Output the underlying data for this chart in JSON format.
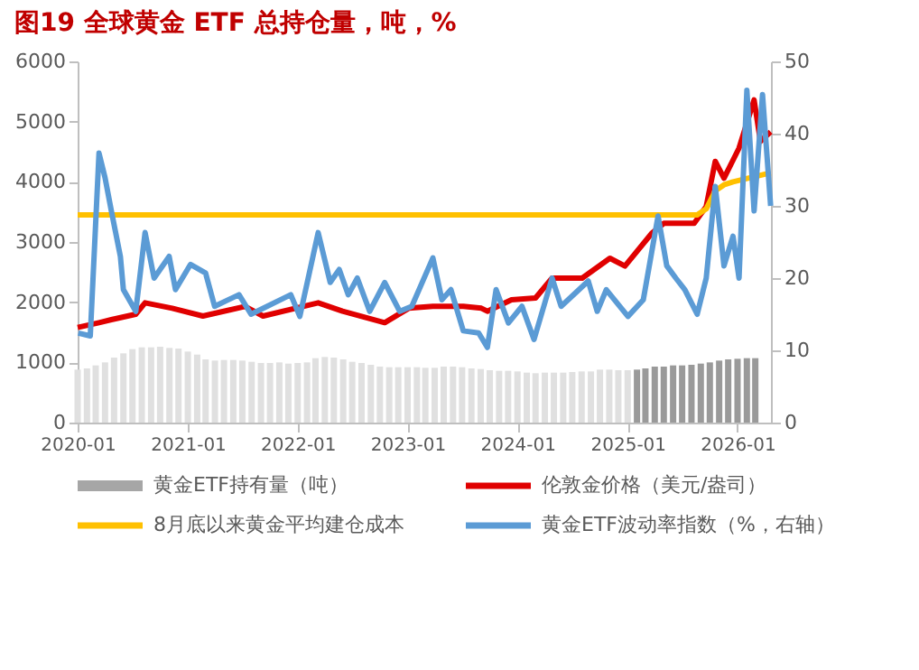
{
  "chart_data": {
    "type": "line",
    "title": "图19  全球黄金 ETF 总持仓量，吨，%",
    "xlim": [
      "2020-01-01",
      "2026-04-22"
    ],
    "xticks": [
      "2020-01",
      "2021-01",
      "2022-01",
      "2023-01",
      "2024-01",
      "2025-01",
      "2026-01"
    ],
    "ylim": [
      0,
      6000
    ],
    "yticks": [
      0,
      1000,
      2000,
      3000,
      4000,
      5000,
      6000
    ],
    "y2lim": [
      0,
      50
    ],
    "y2ticks": [
      0,
      10,
      20,
      30,
      40,
      50
    ],
    "grid": false,
    "legend": "bottom",
    "series": [
      {
        "type": "bar",
        "name": "黄金ETF持有量（吨）",
        "color": "#a6a6a6",
        "x": [
          "2020-01",
          "2020-02",
          "2020-03",
          "2020-04",
          "2020-05",
          "2020-06",
          "2020-07",
          "2020-08",
          "2020-09",
          "2020-10",
          "2020-11",
          "2020-12",
          "2021-01",
          "2021-02",
          "2021-03",
          "2021-04",
          "2021-05",
          "2021-06",
          "2021-07",
          "2021-08",
          "2021-09",
          "2021-10",
          "2021-11",
          "2021-12",
          "2022-01",
          "2022-02",
          "2022-03",
          "2022-04",
          "2022-05",
          "2022-06",
          "2022-07",
          "2022-08",
          "2022-09",
          "2022-10",
          "2022-11",
          "2022-12",
          "2023-01",
          "2023-02",
          "2023-03",
          "2023-04",
          "2023-05",
          "2023-06",
          "2023-07",
          "2023-08",
          "2023-09",
          "2023-10",
          "2023-11",
          "2023-12",
          "2024-01",
          "2024-02",
          "2024-03",
          "2024-04",
          "2024-05",
          "2024-06",
          "2024-07",
          "2024-08",
          "2024-09",
          "2024-10",
          "2024-11",
          "2024-12",
          "2025-01",
          "2025-02",
          "2025-03",
          "2025-04",
          "2025-05",
          "2025-06",
          "2025-07",
          "2025-08",
          "2025-09",
          "2025-10",
          "2025-11",
          "2025-12",
          "2026-01",
          "2026-02",
          "2026-03"
        ],
        "values": [
          880,
          900,
          950,
          1000,
          1080,
          1150,
          1220,
          1250,
          1250,
          1260,
          1240,
          1230,
          1180,
          1130,
          1050,
          1030,
          1040,
          1040,
          1030,
          1010,
          990,
          990,
          1000,
          980,
          990,
          1000,
          1070,
          1090,
          1080,
          1050,
          1010,
          990,
          960,
          930,
          920,
          920,
          920,
          920,
          910,
          910,
          930,
          930,
          920,
          900,
          890,
          870,
          860,
          860,
          850,
          830,
          820,
          830,
          830,
          830,
          840,
          850,
          850,
          880,
          880,
          870,
          870,
          880,
          900,
          930,
          930,
          950,
          950,
          960,
          980,
          1000,
          1030,
          1050,
          1060,
          1070,
          1070
        ],
        "colors": [
          "#e0e0e0",
          "#e0e0e0",
          "#e0e0e0",
          "#e0e0e0",
          "#e0e0e0",
          "#e0e0e0",
          "#e0e0e0",
          "#e0e0e0",
          "#e0e0e0",
          "#e0e0e0",
          "#e0e0e0",
          "#e0e0e0",
          "#e0e0e0",
          "#e0e0e0",
          "#e0e0e0",
          "#e0e0e0",
          "#e0e0e0",
          "#e0e0e0",
          "#e0e0e0",
          "#e0e0e0",
          "#e0e0e0",
          "#e0e0e0",
          "#e0e0e0",
          "#e0e0e0",
          "#e0e0e0",
          "#e0e0e0",
          "#e0e0e0",
          "#e0e0e0",
          "#e0e0e0",
          "#e0e0e0",
          "#e0e0e0",
          "#e0e0e0",
          "#e0e0e0",
          "#e0e0e0",
          "#e0e0e0",
          "#e0e0e0",
          "#e0e0e0",
          "#e0e0e0",
          "#e0e0e0",
          "#e0e0e0",
          "#e0e0e0",
          "#e0e0e0",
          "#e0e0e0",
          "#e0e0e0",
          "#e0e0e0",
          "#e0e0e0",
          "#e0e0e0",
          "#e0e0e0",
          "#e0e0e0",
          "#e0e0e0",
          "#e0e0e0",
          "#e0e0e0",
          "#e0e0e0",
          "#e0e0e0",
          "#e0e0e0",
          "#e0e0e0",
          "#e0e0e0",
          "#e0e0e0",
          "#e0e0e0",
          "#e0e0e0",
          "#e0e0e0",
          "#9a9a9a",
          "#9a9a9a",
          "#9a9a9a",
          "#9a9a9a",
          "#9a9a9a",
          "#9a9a9a",
          "#9a9a9a",
          "#9a9a9a",
          "#9a9a9a",
          "#9a9a9a",
          "#9a9a9a",
          "#9a9a9a",
          "#9a9a9a",
          "#9a9a9a"
        ]
      },
      {
        "name": "伦敦金价格（美元/盎司）",
        "color": "#e00000",
        "x": [
          "2020-01-01",
          "2020-03-12",
          "2020-04-22",
          "2020-07-12",
          "2020-08-12",
          "2020-11-10",
          "2021-02-20",
          "2021-07-10",
          "2021-09-08",
          "2022-03-10",
          "2022-05-30",
          "2022-10-17",
          "2023-01-05",
          "2023-03-26",
          "2023-07-05",
          "2023-09-03",
          "2023-09-23",
          "2023-12-12",
          "2024-03-01",
          "2024-04-25",
          "2024-08-03",
          "2024-11-03",
          "2024-12-23",
          "2025-03-23",
          "2025-05-01",
          "2025-08-10",
          "2025-09-19",
          "2025-10-19",
          "2025-11-17",
          "2026-01-06",
          "2026-02-25",
          "2026-03-18",
          "2026-04-21"
        ],
        "values": [
          1580,
          1660,
          1710,
          1800,
          1990,
          1900,
          1770,
          1930,
          1770,
          1990,
          1850,
          1660,
          1900,
          1930,
          1930,
          1900,
          1850,
          2040,
          2070,
          2400,
          2400,
          2730,
          2600,
          3150,
          3310,
          3310,
          3590,
          4340,
          4060,
          4560,
          5360,
          4670,
          4830
        ]
      },
      {
        "name": "8月底以来黄金平均建仓成本",
        "color": "#ffc000",
        "x": [
          "2020-01-01",
          "2025-08-20",
          "2025-09-19",
          "2025-10-19",
          "2025-11-17",
          "2025-12-17",
          "2026-04-21"
        ],
        "values": [
          3450,
          3450,
          3550,
          3850,
          3950,
          4000,
          4150
        ]
      },
      {
        "name": "黄金ETF波动率指数（%，右轴）",
        "color": "#5b9bd5",
        "axis": "y2",
        "x": [
          "2020-01-03",
          "2020-02-12",
          "2020-03-12",
          "2020-04-01",
          "2020-04-22",
          "2020-05-22",
          "2020-06-01",
          "2020-07-12",
          "2020-08-12",
          "2020-09-11",
          "2020-10-31",
          "2020-11-21",
          "2021-01-10",
          "2021-03-01",
          "2021-03-31",
          "2021-06-20",
          "2021-07-30",
          "2021-12-09",
          "2022-01-08",
          "2022-03-10",
          "2022-04-19",
          "2022-05-19",
          "2022-06-18",
          "2022-07-18",
          "2022-08-28",
          "2022-10-17",
          "2022-12-06",
          "2023-01-15",
          "2023-03-26",
          "2023-04-25",
          "2023-05-25",
          "2023-07-05",
          "2023-08-25",
          "2023-09-23",
          "2023-10-22",
          "2023-12-02",
          "2024-01-16",
          "2024-02-25",
          "2024-04-25",
          "2024-05-25",
          "2024-08-23",
          "2024-09-22",
          "2024-10-22",
          "2025-01-02",
          "2025-02-22",
          "2025-04-12",
          "2025-05-11",
          "2025-06-10",
          "2025-07-10",
          "2025-08-20",
          "2025-09-19",
          "2025-10-19",
          "2025-11-17",
          "2025-12-17",
          "2026-01-06",
          "2026-02-01",
          "2026-02-25",
          "2026-03-25",
          "2026-04-21"
        ],
        "values": [
          12.4,
          12.0,
          37.3,
          33.9,
          29.3,
          23,
          18.4,
          15.4,
          26.3,
          20,
          23,
          18.4,
          21.9,
          20.7,
          16.1,
          17.7,
          15,
          17.7,
          14.7,
          26.3,
          19.4,
          21.2,
          17.7,
          20,
          15.4,
          19.4,
          15.4,
          16.1,
          22.8,
          17,
          18.4,
          12.7,
          12.4,
          10.4,
          18.4,
          13.8,
          16.1,
          11.5,
          20,
          16.1,
          19.6,
          15.4,
          18.4,
          14.7,
          17,
          28.6,
          21.7,
          20,
          18.4,
          15,
          20,
          32.7,
          21.7,
          25.8,
          20,
          46,
          29.3,
          45.4,
          30
        ]
      }
    ]
  }
}
